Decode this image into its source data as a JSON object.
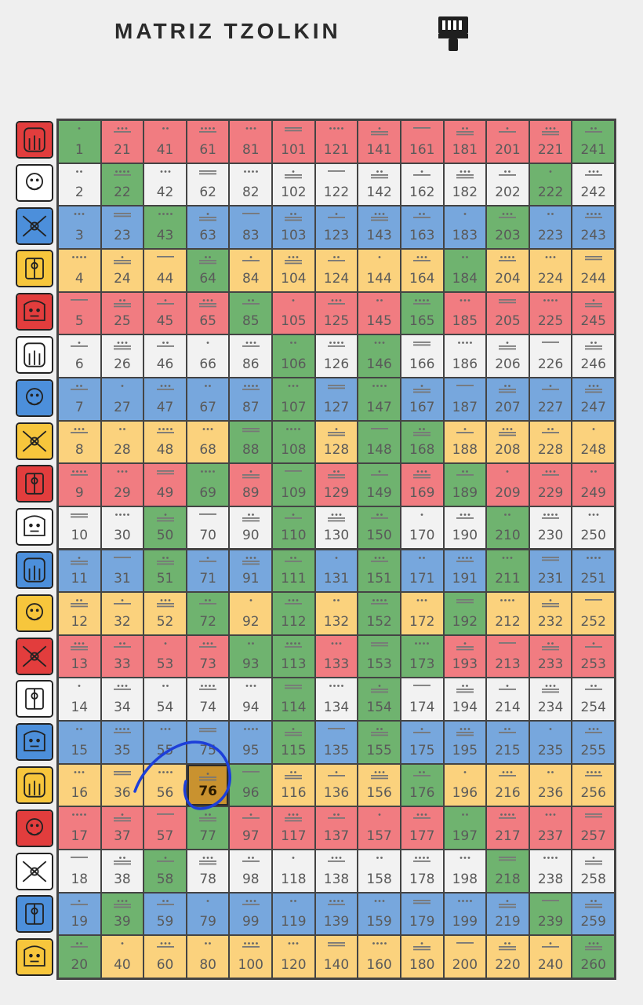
{
  "header": {
    "title": "MATRIZ TZOLKIN",
    "paint_icon": "paint-roller-icon"
  },
  "colors": {
    "red": "#f17c81",
    "white": "#f2f2f2",
    "blue": "#77a7dd",
    "yellow": "#fbd27d",
    "green": "#6fb36f",
    "highlight": "#c9922f",
    "grid": "#444444"
  },
  "glyphs": [
    "imix-red-glyph",
    "ik-white-glyph",
    "akbal-blue-glyph",
    "kan-yellow-glyph",
    "chicchan-red-glyph",
    "cimi-white-glyph",
    "manik-blue-glyph",
    "lamat-yellow-glyph",
    "muluc-red-glyph",
    "oc-white-glyph",
    "chuen-blue-glyph",
    "eb-yellow-glyph",
    "ben-red-glyph",
    "ix-white-glyph",
    "men-blue-glyph",
    "cib-yellow-glyph",
    "caban-red-glyph",
    "etznab-white-glyph",
    "cauac-blue-glyph",
    "ahau-yellow-glyph"
  ],
  "grid": {
    "selected": 76,
    "green_cells": [
      1,
      20,
      22,
      39,
      43,
      50,
      51,
      58,
      64,
      69,
      72,
      77,
      85,
      88,
      93,
      96,
      106,
      107,
      108,
      109,
      110,
      111,
      112,
      113,
      114,
      115,
      146,
      147,
      148,
      149,
      150,
      151,
      152,
      153,
      154,
      155,
      165,
      168,
      173,
      176,
      184,
      189,
      192,
      197,
      203,
      210,
      211,
      218,
      222,
      239,
      241,
      260
    ]
  }
}
